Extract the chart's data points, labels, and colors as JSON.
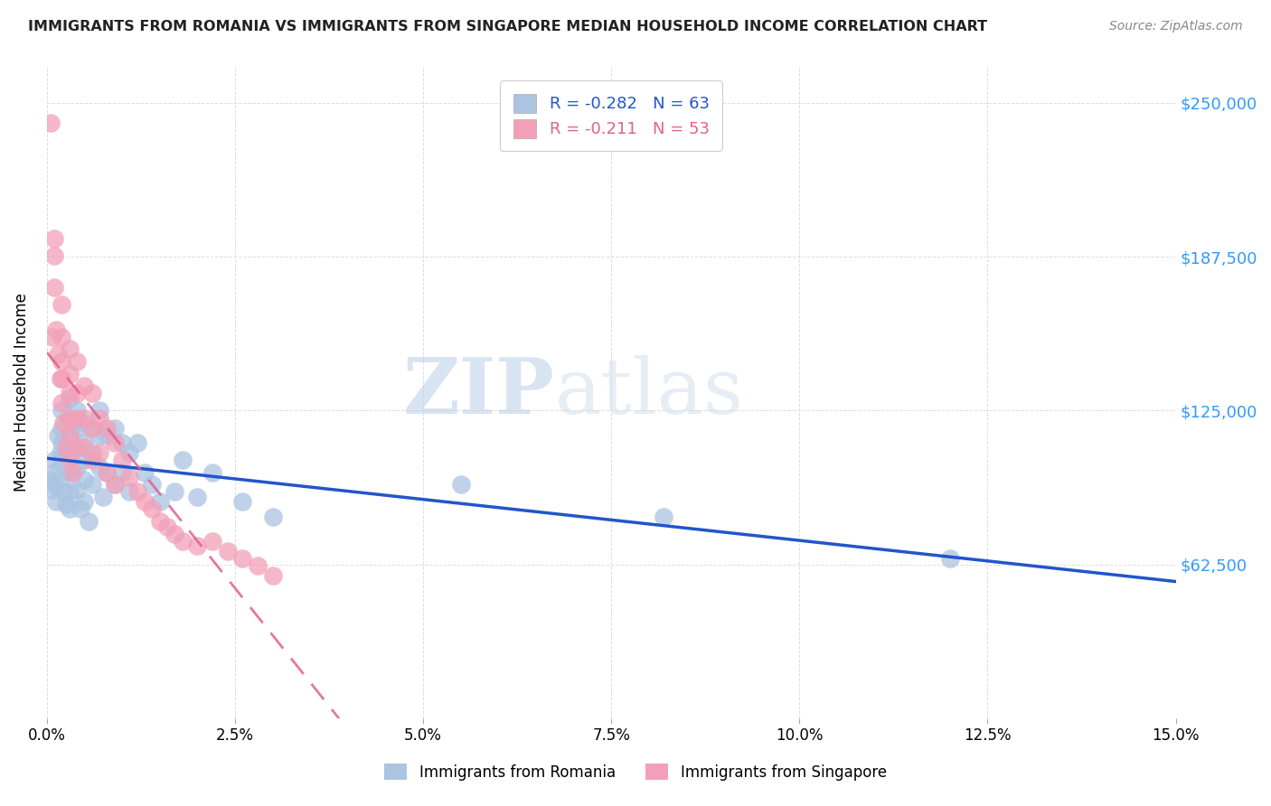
{
  "title": "IMMIGRANTS FROM ROMANIA VS IMMIGRANTS FROM SINGAPORE MEDIAN HOUSEHOLD INCOME CORRELATION CHART",
  "source": "Source: ZipAtlas.com",
  "ylabel": "Median Household Income",
  "yticks": [
    0,
    62500,
    125000,
    187500,
    250000
  ],
  "ytick_labels": [
    "",
    "$62,500",
    "$125,000",
    "$187,500",
    "$250,000"
  ],
  "xmin": 0.0,
  "xmax": 0.15,
  "ymin": 0,
  "ymax": 265000,
  "romania_color": "#aac4e2",
  "singapore_color": "#f2a0b8",
  "romania_line_color": "#2255cc",
  "singapore_line_color": "#e06090",
  "legend_romania_R": "-0.282",
  "legend_romania_N": "63",
  "legend_singapore_R": "-0.211",
  "legend_singapore_N": "53",
  "romania_x": [
    0.0005,
    0.0008,
    0.001,
    0.001,
    0.001,
    0.0012,
    0.0015,
    0.0018,
    0.002,
    0.002,
    0.002,
    0.002,
    0.002,
    0.0022,
    0.0025,
    0.003,
    0.003,
    0.003,
    0.003,
    0.003,
    0.003,
    0.003,
    0.0035,
    0.004,
    0.004,
    0.004,
    0.004,
    0.004,
    0.0045,
    0.005,
    0.005,
    0.005,
    0.005,
    0.005,
    0.0055,
    0.006,
    0.006,
    0.006,
    0.007,
    0.007,
    0.007,
    0.0075,
    0.008,
    0.008,
    0.009,
    0.009,
    0.01,
    0.01,
    0.011,
    0.011,
    0.012,
    0.013,
    0.014,
    0.015,
    0.017,
    0.018,
    0.02,
    0.022,
    0.026,
    0.03,
    0.055,
    0.082,
    0.12
  ],
  "romania_y": [
    97000,
    93000,
    105000,
    100000,
    95000,
    88000,
    115000,
    108000,
    125000,
    118000,
    112000,
    105000,
    98000,
    92000,
    87000,
    130000,
    122000,
    115000,
    108000,
    100000,
    92000,
    85000,
    120000,
    125000,
    118000,
    110000,
    102000,
    93000,
    85000,
    120000,
    112000,
    105000,
    97000,
    88000,
    80000,
    118000,
    108000,
    95000,
    125000,
    115000,
    102000,
    90000,
    115000,
    100000,
    118000,
    95000,
    112000,
    100000,
    108000,
    92000,
    112000,
    100000,
    95000,
    88000,
    92000,
    105000,
    90000,
    100000,
    88000,
    82000,
    95000,
    82000,
    65000
  ],
  "singapore_x": [
    0.0005,
    0.0008,
    0.001,
    0.001,
    0.001,
    0.0012,
    0.0015,
    0.0018,
    0.002,
    0.002,
    0.002,
    0.002,
    0.002,
    0.0022,
    0.0025,
    0.003,
    0.003,
    0.003,
    0.003,
    0.003,
    0.003,
    0.0035,
    0.004,
    0.004,
    0.004,
    0.004,
    0.005,
    0.005,
    0.005,
    0.006,
    0.006,
    0.006,
    0.007,
    0.007,
    0.008,
    0.008,
    0.009,
    0.009,
    0.01,
    0.011,
    0.012,
    0.013,
    0.014,
    0.015,
    0.016,
    0.017,
    0.018,
    0.02,
    0.022,
    0.024,
    0.026,
    0.028,
    0.03
  ],
  "singapore_y": [
    242000,
    155000,
    195000,
    188000,
    175000,
    158000,
    148000,
    138000,
    168000,
    155000,
    145000,
    138000,
    128000,
    120000,
    110000,
    150000,
    140000,
    132000,
    122000,
    115000,
    105000,
    100000,
    145000,
    132000,
    122000,
    110000,
    135000,
    122000,
    110000,
    132000,
    118000,
    105000,
    122000,
    108000,
    118000,
    100000,
    112000,
    95000,
    105000,
    98000,
    92000,
    88000,
    85000,
    80000,
    78000,
    75000,
    72000,
    70000,
    72000,
    68000,
    65000,
    62000,
    58000
  ],
  "watermark_zip": "ZIP",
  "watermark_atlas": "atlas",
  "background_color": "#ffffff",
  "grid_color": "#dddddd"
}
